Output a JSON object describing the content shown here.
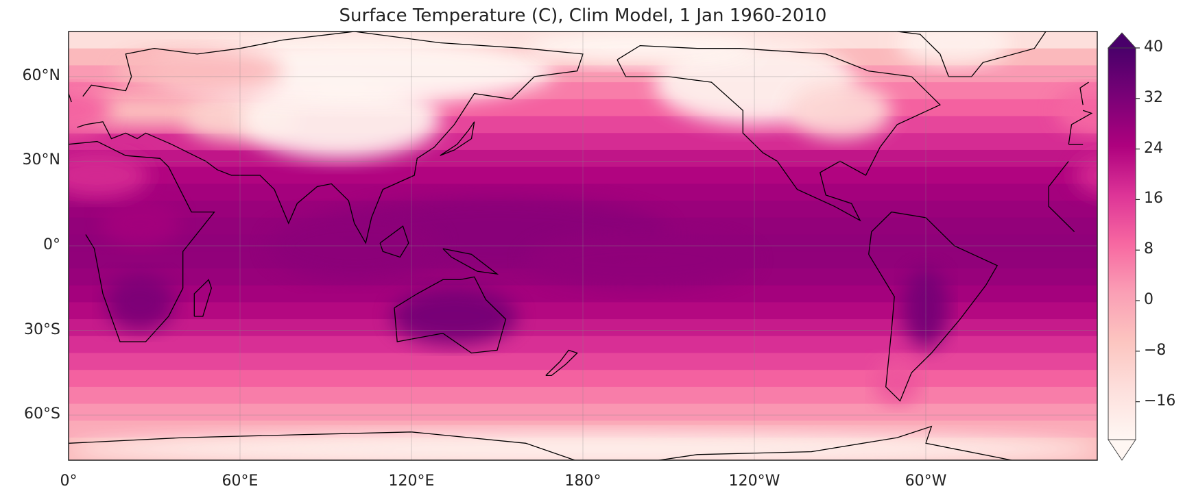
{
  "chart_data": {
    "type": "map",
    "title": "Surface Temperature (C), Clim Model, 1 Jan 1960-2010",
    "projection": "PlateCarree",
    "central_longitude": 180,
    "lat_ticks": [
      {
        "lat": 60,
        "label": "60°N"
      },
      {
        "lat": 30,
        "label": "30°N"
      },
      {
        "lat": 0,
        "label": "0°"
      },
      {
        "lat": -30,
        "label": "30°S"
      },
      {
        "lat": -60,
        "label": "60°S"
      }
    ],
    "lon_ticks": [
      {
        "lon": 0,
        "label": "0°"
      },
      {
        "lon": 60,
        "label": "60°E"
      },
      {
        "lon": 120,
        "label": "120°E"
      },
      {
        "lon": 180,
        "label": "180°"
      },
      {
        "lon": 240,
        "label": "120°W"
      },
      {
        "lon": 300,
        "label": "60°W"
      }
    ],
    "grid": true,
    "colorbar": {
      "colormap": "RdPu",
      "min": -22,
      "max": 40,
      "extend": "both",
      "ticks": [
        {
          "value": 40,
          "label": "40"
        },
        {
          "value": 32,
          "label": "32"
        },
        {
          "value": 24,
          "label": "24"
        },
        {
          "value": 16,
          "label": "16"
        },
        {
          "value": 8,
          "label": "8"
        },
        {
          "value": 0,
          "label": "0"
        },
        {
          "value": -8,
          "label": "−8"
        },
        {
          "value": -16,
          "label": "−16"
        }
      ],
      "colors": [
        "#fff7f3",
        "#fde0dd",
        "#fcc5c0",
        "#fa9fb5",
        "#f768a1",
        "#dd3497",
        "#ae017e",
        "#7a0177",
        "#49006a"
      ]
    },
    "coastlines": true
  }
}
